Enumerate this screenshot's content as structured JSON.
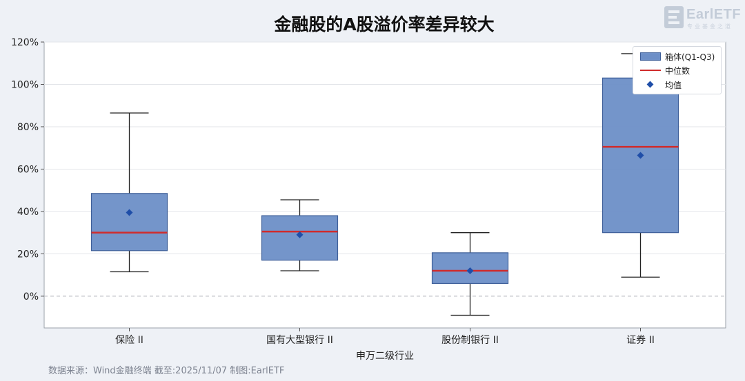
{
  "title": "金融股的A股溢价率差异较大",
  "logo": {
    "text": "EarlETF",
    "subtitle": "专业基金之道"
  },
  "footnote": "数据来源：Wind金融终端 截至:2025/11/07 制图:EarlETF",
  "legend": {
    "box_label": "箱体(Q1-Q3)",
    "median_label": "中位数",
    "mean_label": "均值"
  },
  "colors": {
    "box_fill": "#6d8fc7",
    "box_edge": "#3e5f99",
    "median": "#d02b2b",
    "mean": "#1f4ea8",
    "whisker": "#222222",
    "zero_line": "#b0b4bb"
  },
  "chart_data": {
    "type": "box",
    "title": "金融股的A股溢价率差异较大",
    "xlabel": "申万二级行业",
    "ylabel": "",
    "ylim": [
      -15,
      120
    ],
    "yticks": [
      0,
      20,
      40,
      60,
      80,
      100,
      120
    ],
    "ytick_labels": [
      "0%",
      "20%",
      "40%",
      "60%",
      "80%",
      "100%",
      "120%"
    ],
    "grid": true,
    "zero_reference_line": true,
    "legend_position": "top-right",
    "categories": [
      "保险 II",
      "国有大型银行 II",
      "股份制银行 II",
      "证券 II"
    ],
    "boxes": [
      {
        "category": "保险 II",
        "whisker_low": 11.5,
        "q1": 21.5,
        "median": 30.0,
        "q3": 48.5,
        "whisker_high": 86.5,
        "mean": 39.5
      },
      {
        "category": "国有大型银行 II",
        "whisker_low": 12.0,
        "q1": 17.0,
        "median": 30.5,
        "q3": 38.0,
        "whisker_high": 45.5,
        "mean": 29.0
      },
      {
        "category": "股份制银行 II",
        "whisker_low": -9.0,
        "q1": 6.0,
        "median": 12.0,
        "q3": 20.5,
        "whisker_high": 30.0,
        "mean": 12.0
      },
      {
        "category": "证券 II",
        "whisker_low": 9.0,
        "q1": 30.0,
        "median": 70.5,
        "q3": 103.0,
        "whisker_high": 114.5,
        "mean": 66.5
      }
    ]
  }
}
